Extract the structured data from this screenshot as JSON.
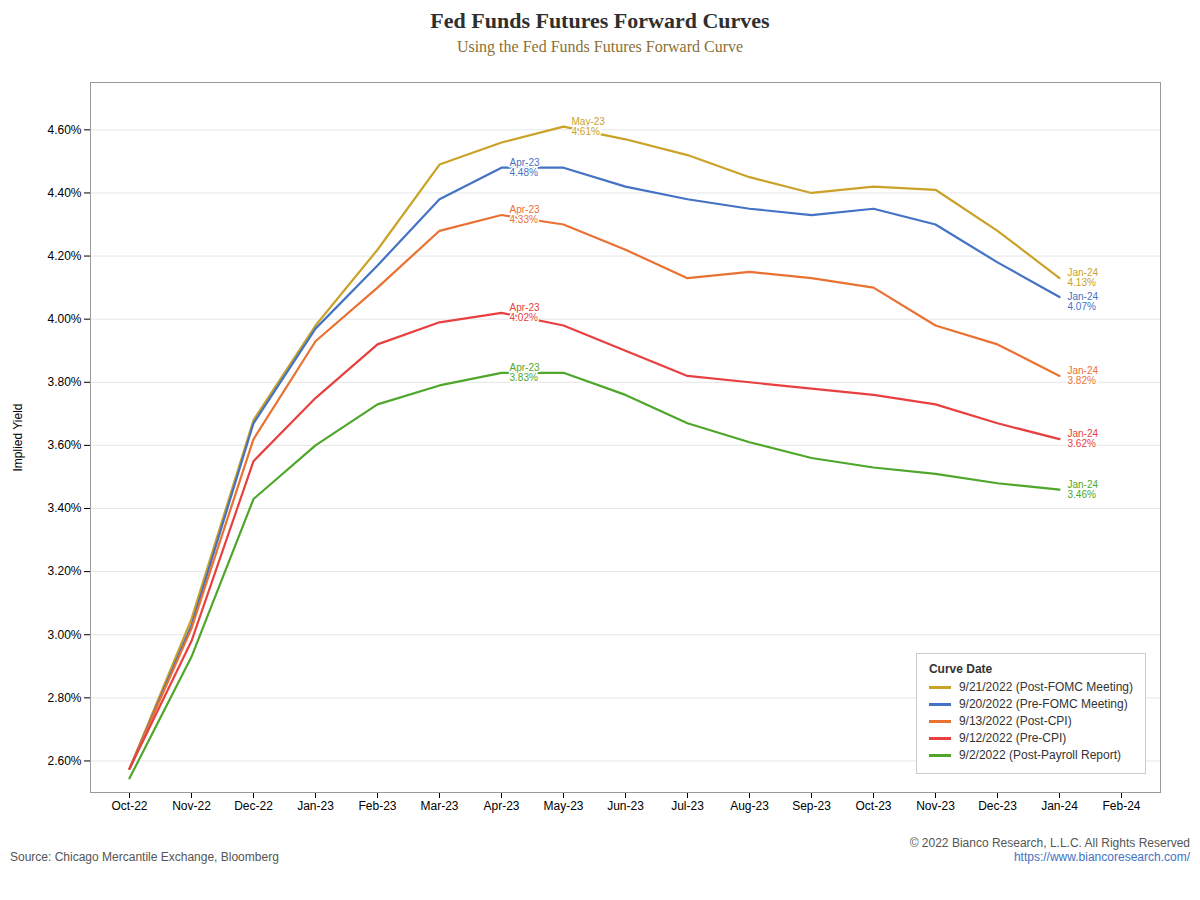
{
  "chart_data": {
    "type": "line",
    "title": "Fed Funds Futures Forward Curves",
    "subtitle": "Using the Fed Funds Futures Forward Curve",
    "ylabel": "Implied Yield",
    "source_left": "Source: Chicago Mercantile Exchange, Bloomberg",
    "source_right": "© 2022 Bianco Research, L.L.C. All Rights Reserved",
    "source_url": "https://www.biancoresearch.com/",
    "categories": [
      "Oct-22",
      "Nov-22",
      "Dec-22",
      "Jan-23",
      "Feb-23",
      "Mar-23",
      "Apr-23",
      "May-23",
      "Jun-23",
      "Jul-23",
      "Aug-23",
      "Sep-23",
      "Oct-23",
      "Nov-23",
      "Dec-23",
      "Jan-24",
      "Feb-24"
    ],
    "series": [
      {
        "name": "9/21/2022 (Post-FOMC Meeting)",
        "color": "#C9A227",
        "values": [
          2.575,
          3.05,
          3.68,
          3.98,
          4.22,
          4.49,
          4.56,
          4.61,
          4.57,
          4.52,
          4.45,
          4.4,
          4.42,
          4.41,
          4.28,
          4.13,
          null
        ]
      },
      {
        "name": "9/20/2022 (Pre-FOMC Meeting)",
        "color": "#4472C4",
        "values": [
          2.575,
          3.03,
          3.67,
          3.97,
          4.17,
          4.38,
          4.48,
          4.48,
          4.42,
          4.38,
          4.35,
          4.33,
          4.35,
          4.3,
          4.18,
          4.07,
          null
        ]
      },
      {
        "name": "9/13/2022 (Post-CPI)",
        "color": "#E97132",
        "values": [
          2.575,
          3.02,
          3.62,
          3.93,
          4.1,
          4.28,
          4.33,
          4.3,
          4.22,
          4.13,
          4.15,
          4.13,
          4.1,
          3.98,
          3.92,
          3.82,
          null
        ]
      },
      {
        "name": "9/12/2022 (Pre-CPI)",
        "color": "#E84040",
        "values": [
          2.575,
          2.98,
          3.55,
          3.75,
          3.92,
          3.99,
          4.02,
          3.98,
          3.9,
          3.82,
          3.8,
          3.78,
          3.76,
          3.73,
          3.67,
          3.62,
          null
        ]
      },
      {
        "name": "9/2/2022 (Post-Payroll Report)",
        "color": "#4EA72A",
        "values": [
          2.545,
          2.93,
          3.43,
          3.6,
          3.73,
          3.79,
          3.83,
          3.83,
          3.76,
          3.67,
          3.61,
          3.56,
          3.53,
          3.51,
          3.48,
          3.46,
          null
        ]
      }
    ],
    "ylim": [
      2.5,
      4.75
    ],
    "yticks": [
      {
        "value": 2.6,
        "label": "2.60%"
      },
      {
        "value": 2.8,
        "label": "2.80%"
      },
      {
        "value": 3.0,
        "label": "3.00%"
      },
      {
        "value": 3.2,
        "label": "3.20%"
      },
      {
        "value": 3.4,
        "label": "3.40%"
      },
      {
        "value": 3.6,
        "label": "3.60%"
      },
      {
        "value": 3.8,
        "label": "3.80%"
      },
      {
        "value": 4.0,
        "label": "4.00%"
      },
      {
        "value": 4.2,
        "label": "4.20%"
      },
      {
        "value": 4.4,
        "label": "4.40%"
      },
      {
        "value": 4.6,
        "label": "4.60%"
      }
    ],
    "grid": true,
    "legend": "lower right",
    "legend_title": "Curve Date",
    "annotations": [
      {
        "text": "May-23\n4.61%",
        "x": "May-23",
        "y": 4.61,
        "color": "#C9A227"
      },
      {
        "text": "Jan-24\n4.13%",
        "x": "Jan-24",
        "y": 4.13,
        "color": "#C9A227"
      },
      {
        "text": "Apr-23\n4.48%",
        "x": "Apr-23",
        "y": 4.48,
        "color": "#4472C4"
      },
      {
        "text": "Jan-24\n4.07%",
        "x": "Jan-24",
        "y": 4.07,
        "color": "#4472C4"
      },
      {
        "text": "Apr-23\n4.33%",
        "x": "Apr-23",
        "y": 4.33,
        "color": "#E97132"
      },
      {
        "text": "Jan-24\n3.82%",
        "x": "Jan-24",
        "y": 3.82,
        "color": "#E97132"
      },
      {
        "text": "Apr-23\n4.02%",
        "x": "Apr-23",
        "y": 4.02,
        "color": "#E84040"
      },
      {
        "text": "Jan-24\n3.62%",
        "x": "Jan-24",
        "y": 3.62,
        "color": "#E84040"
      },
      {
        "text": "Apr-23\n3.83%",
        "x": "Apr-23",
        "y": 3.83,
        "color": "#4EA72A"
      },
      {
        "text": "Jan-24\n3.46%",
        "x": "Jan-24",
        "y": 3.46,
        "color": "#4EA72A"
      }
    ]
  }
}
